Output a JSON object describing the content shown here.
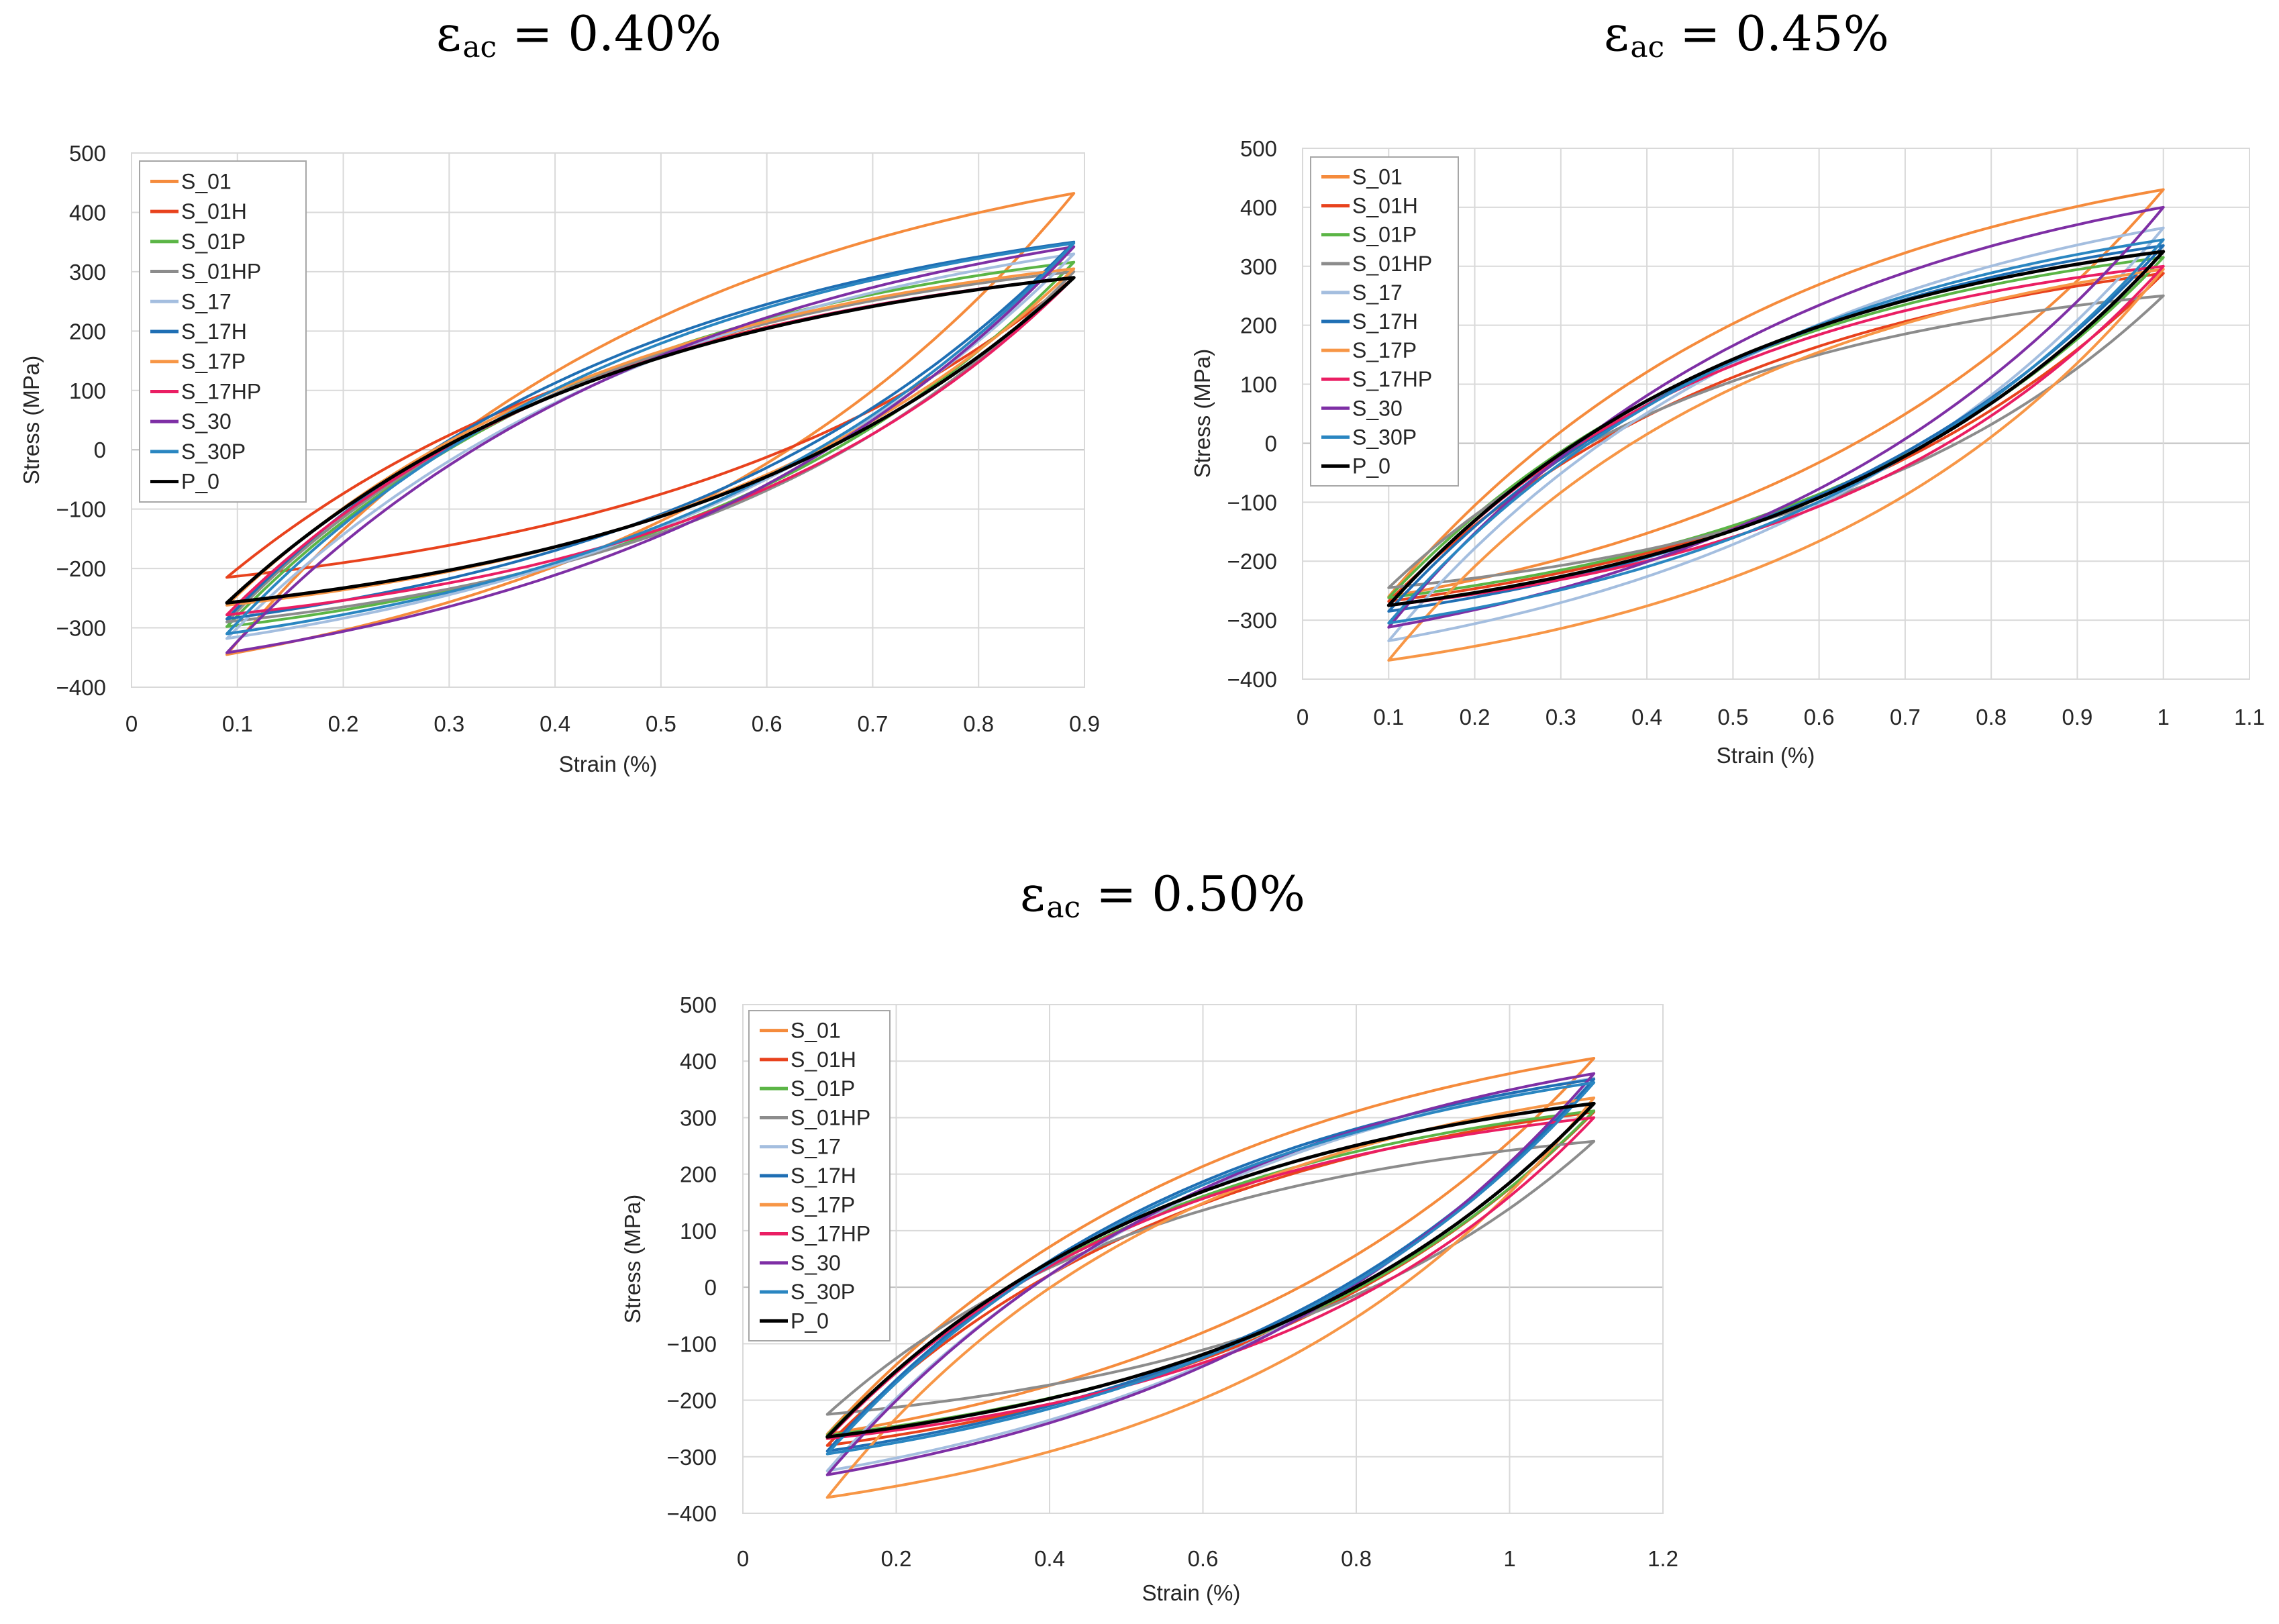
{
  "series_colors": {
    "S_01": "#f58b3c",
    "S_01H": "#e8421d",
    "S_01P": "#5bb546",
    "S_01HP": "#8c8c8c",
    "S_17": "#a4bedf",
    "S_17H": "#1f6fb4",
    "S_17P": "#f79646",
    "S_17HP": "#ea1e63",
    "S_30": "#7e2fa5",
    "S_30P": "#2a86c1",
    "P_0": "#000000"
  },
  "chart_data": [
    {
      "type": "line",
      "title_symbol": "ε",
      "title_sub": "ac",
      "title_rest": " = 0.40%",
      "xlabel": "Strain  (%)",
      "ylabel": "Stress (MPa)",
      "xlim": [
        0,
        0.9
      ],
      "ylim": [
        -400,
        500
      ],
      "xticks": [
        "0",
        "0.1",
        "0.2",
        "0.3",
        "0.4",
        "0.5",
        "0.6",
        "0.7",
        "0.8",
        "0.9"
      ],
      "yticks": [
        "500",
        "400",
        "300",
        "200",
        "100",
        "0",
        "−100",
        "−200",
        "−300",
        "−400"
      ],
      "grid": true,
      "legend_position": "top-left",
      "strain_range": [
        0.09,
        0.89
      ],
      "series": [
        {
          "name": "S_01",
          "min_stress": -345,
          "max_stress": 432
        },
        {
          "name": "S_01H",
          "min_stress": -215,
          "max_stress": 290
        },
        {
          "name": "S_01P",
          "min_stress": -298,
          "max_stress": 316
        },
        {
          "name": "S_01HP",
          "min_stress": -290,
          "max_stress": 300
        },
        {
          "name": "S_17",
          "min_stress": -318,
          "max_stress": 330
        },
        {
          "name": "S_17H",
          "min_stress": -285,
          "max_stress": 350
        },
        {
          "name": "S_17P",
          "min_stress": -262,
          "max_stress": 305
        },
        {
          "name": "S_17HP",
          "min_stress": -278,
          "max_stress": 290
        },
        {
          "name": "S_30",
          "min_stress": -342,
          "max_stress": 342
        },
        {
          "name": "S_30P",
          "min_stress": -310,
          "max_stress": 348
        },
        {
          "name": "P_0",
          "min_stress": -258,
          "max_stress": 290
        }
      ]
    },
    {
      "type": "line",
      "title_symbol": "ε",
      "title_sub": "ac",
      "title_rest": " = 0.45%",
      "xlabel": "Strain  (%)",
      "ylabel": "Stress (MPa)",
      "xlim": [
        0,
        1.1
      ],
      "ylim": [
        -400,
        500
      ],
      "xticks": [
        "0",
        "0.1",
        "0.2",
        "0.3",
        "0.4",
        "0.5",
        "0.6",
        "0.7",
        "0.8",
        "0.9",
        "1",
        "1.1"
      ],
      "yticks": [
        "500",
        "400",
        "300",
        "200",
        "100",
        "0",
        "−100",
        "−200",
        "−300",
        "−400"
      ],
      "grid": true,
      "legend_position": "top-left",
      "strain_range": [
        0.1,
        1.0
      ],
      "series": [
        {
          "name": "S_01",
          "min_stress": -260,
          "max_stress": 430
        },
        {
          "name": "S_01H",
          "min_stress": -268,
          "max_stress": 288
        },
        {
          "name": "S_01P",
          "min_stress": -262,
          "max_stress": 315
        },
        {
          "name": "S_01HP",
          "min_stress": -245,
          "max_stress": 250
        },
        {
          "name": "S_17",
          "min_stress": -335,
          "max_stress": 365
        },
        {
          "name": "S_17H",
          "min_stress": -285,
          "max_stress": 335
        },
        {
          "name": "S_17P",
          "min_stress": -368,
          "max_stress": 295
        },
        {
          "name": "S_17HP",
          "min_stress": -275,
          "max_stress": 300
        },
        {
          "name": "S_30",
          "min_stress": -312,
          "max_stress": 400
        },
        {
          "name": "S_30P",
          "min_stress": -305,
          "max_stress": 345
        },
        {
          "name": "P_0",
          "min_stress": -275,
          "max_stress": 325
        }
      ]
    },
    {
      "type": "line",
      "title_symbol": "ε",
      "title_sub": "ac",
      "title_rest": " = 0.50%",
      "xlabel": "Strain  (%)",
      "ylabel": "Stress (MPa)",
      "xlim": [
        0,
        1.2
      ],
      "ylim": [
        -400,
        500
      ],
      "xticks": [
        "0",
        "0.2",
        "0.4",
        "0.6",
        "0.8",
        "1",
        "1.2"
      ],
      "yticks": [
        "500",
        "400",
        "300",
        "200",
        "100",
        "0",
        "−100",
        "−200",
        "−300",
        "−400"
      ],
      "grid": true,
      "legend_position": "top-left",
      "strain_range": [
        0.11,
        1.11
      ],
      "series": [
        {
          "name": "S_01",
          "min_stress": -260,
          "max_stress": 405
        },
        {
          "name": "S_01H",
          "min_stress": -280,
          "max_stress": 310
        },
        {
          "name": "S_01P",
          "min_stress": -262,
          "max_stress": 312
        },
        {
          "name": "S_01HP",
          "min_stress": -225,
          "max_stress": 258
        },
        {
          "name": "S_17",
          "min_stress": -325,
          "max_stress": 370
        },
        {
          "name": "S_17H",
          "min_stress": -290,
          "max_stress": 368
        },
        {
          "name": "S_17P",
          "min_stress": -372,
          "max_stress": 335
        },
        {
          "name": "S_17HP",
          "min_stress": -268,
          "max_stress": 300
        },
        {
          "name": "S_30",
          "min_stress": -332,
          "max_stress": 378
        },
        {
          "name": "S_30P",
          "min_stress": -295,
          "max_stress": 362
        },
        {
          "name": "P_0",
          "min_stress": -265,
          "max_stress": 325
        }
      ]
    }
  ]
}
